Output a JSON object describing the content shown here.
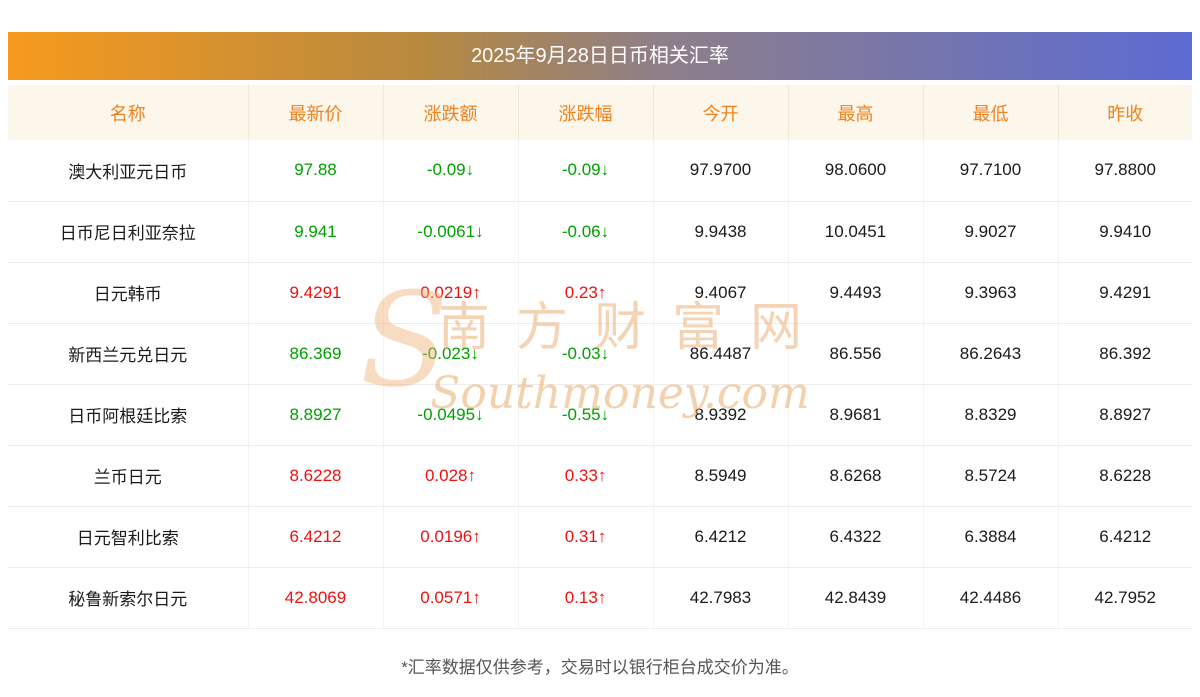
{
  "title": "2025年9月28日日币相关汇率",
  "chart_data": {
    "type": "table",
    "title": "2025年9月28日日币相关汇率",
    "columns": [
      "名称",
      "最新价",
      "涨跌额",
      "涨跌幅",
      "今开",
      "最高",
      "最低",
      "昨收"
    ],
    "rows": [
      {
        "name": "澳大利亚元日币",
        "latest": "97.88",
        "change": "-0.09↓",
        "change_pct": "-0.09↓",
        "open": "97.9700",
        "high": "98.0600",
        "low": "97.7100",
        "prev": "97.8800",
        "trend": "down"
      },
      {
        "name": "日币尼日利亚奈拉",
        "latest": "9.941",
        "change": "-0.0061↓",
        "change_pct": "-0.06↓",
        "open": "9.9438",
        "high": "10.0451",
        "low": "9.9027",
        "prev": "9.9410",
        "trend": "down"
      },
      {
        "name": "日元韩币",
        "latest": "9.4291",
        "change": "0.0219↑",
        "change_pct": "0.23↑",
        "open": "9.4067",
        "high": "9.4493",
        "low": "9.3963",
        "prev": "9.4291",
        "trend": "up"
      },
      {
        "name": "新西兰元兑日元",
        "latest": "86.369",
        "change": "-0.023↓",
        "change_pct": "-0.03↓",
        "open": "86.4487",
        "high": "86.556",
        "low": "86.2643",
        "prev": "86.392",
        "trend": "down"
      },
      {
        "name": "日币阿根廷比索",
        "latest": "8.8927",
        "change": "-0.0495↓",
        "change_pct": "-0.55↓",
        "open": "8.9392",
        "high": "8.9681",
        "low": "8.8329",
        "prev": "8.8927",
        "trend": "down"
      },
      {
        "name": "兰币日元",
        "latest": "8.6228",
        "change": "0.028↑",
        "change_pct": "0.33↑",
        "open": "8.5949",
        "high": "8.6268",
        "low": "8.5724",
        "prev": "8.6228",
        "trend": "up"
      },
      {
        "name": "日元智利比索",
        "latest": "6.4212",
        "change": "0.0196↑",
        "change_pct": "0.31↑",
        "open": "6.4212",
        "high": "6.4322",
        "low": "6.3884",
        "prev": "6.4212",
        "trend": "up"
      },
      {
        "name": "秘鲁新索尔日元",
        "latest": "42.8069",
        "change": "0.0571↑",
        "change_pct": "0.13↑",
        "open": "42.7983",
        "high": "42.8439",
        "low": "42.4486",
        "prev": "42.7952",
        "trend": "up"
      }
    ]
  },
  "footer": {
    "note": "*汇率数据仅供参考，交易时以银行柜台成交价为准。"
  },
  "watermark": {
    "initial": "S",
    "cn": "南方财富网",
    "en": "Southmoney.com"
  },
  "colors": {
    "up": "#ee1111",
    "down": "#00a000",
    "header_text": "#f0821e",
    "header_bg": "#fdf6ea",
    "gradient_left": "#f79a1d",
    "gradient_right": "#5c6bd2"
  }
}
